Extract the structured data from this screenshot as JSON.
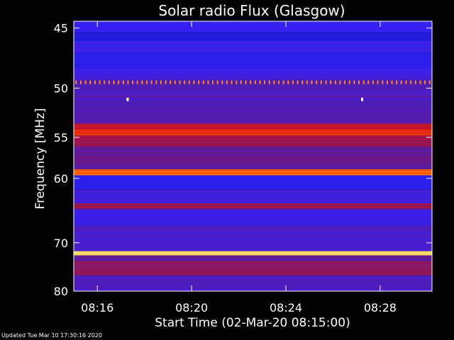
{
  "chart_data": {
    "type": "heatmap",
    "title": "Solar radio Flux (Glasgow)",
    "xlabel": "Start Time (02-Mar-20 08:15:00)",
    "ylabel": "Frequency [MHz]",
    "x_ticks": [
      "08:16",
      "08:20",
      "08:24",
      "08:28"
    ],
    "x_tick_minutes": [
      16,
      20,
      24,
      28
    ],
    "xlim_minutes": [
      15,
      30.2
    ],
    "y_ticks": [
      45,
      50,
      55,
      60,
      70,
      80
    ],
    "y_scale": "reciprocal",
    "ylim": [
      44.5,
      80
    ],
    "colormap": [
      "#1a1acc",
      "#3322ff",
      "#5a1aa0",
      "#a0144a",
      "#e01414",
      "#ff6a00",
      "#ffff88"
    ],
    "bands": [
      {
        "freq_from": 44.5,
        "freq_to": 45.3,
        "level": 0.18
      },
      {
        "freq_from": 45.3,
        "freq_to": 46.0,
        "level": 0.05
      },
      {
        "freq_from": 46.0,
        "freq_to": 47.0,
        "level": 0.2
      },
      {
        "freq_from": 47.0,
        "freq_to": 48.2,
        "level": 0.1
      },
      {
        "freq_from": 48.2,
        "freq_to": 49.2,
        "level": 0.22
      },
      {
        "freq_from": 49.2,
        "freq_to": 50.0,
        "level": 0.3
      },
      {
        "freq_from": 50.0,
        "freq_to": 51.2,
        "level": 0.28
      },
      {
        "freq_from": 51.2,
        "freq_to": 53.5,
        "level": 0.3
      },
      {
        "freq_from": 53.5,
        "freq_to": 54.1,
        "level": 0.6
      },
      {
        "freq_from": 54.1,
        "freq_to": 54.8,
        "level": 0.72
      },
      {
        "freq_from": 54.8,
        "freq_to": 56.0,
        "level": 0.5
      },
      {
        "freq_from": 56.0,
        "freq_to": 58.8,
        "level": 0.35
      },
      {
        "freq_from": 58.8,
        "freq_to": 59.6,
        "level": 0.82
      },
      {
        "freq_from": 59.6,
        "freq_to": 61.5,
        "level": 0.12
      },
      {
        "freq_from": 61.5,
        "freq_to": 63.5,
        "level": 0.22
      },
      {
        "freq_from": 63.5,
        "freq_to": 64.4,
        "level": 0.5
      },
      {
        "freq_from": 64.4,
        "freq_to": 67.0,
        "level": 0.2
      },
      {
        "freq_from": 67.0,
        "freq_to": 71.5,
        "level": 0.25
      },
      {
        "freq_from": 71.5,
        "freq_to": 72.3,
        "level": 0.97
      },
      {
        "freq_from": 72.3,
        "freq_to": 73.5,
        "level": 0.32
      },
      {
        "freq_from": 73.5,
        "freq_to": 76.5,
        "level": 0.45
      },
      {
        "freq_from": 76.5,
        "freq_to": 80.0,
        "level": 0.28
      }
    ],
    "markers": [
      {
        "freq": 51.1,
        "minute": 17.3
      },
      {
        "freq": 51.1,
        "minute": 27.25
      }
    ],
    "dotted_line": {
      "freq": 49.5,
      "minute_from": 15.1,
      "minute_to": 30.1,
      "step_minutes": 0.2
    }
  },
  "footer": {
    "updated_text": "Updated Tue Mar 10 17:30:16 2020"
  }
}
